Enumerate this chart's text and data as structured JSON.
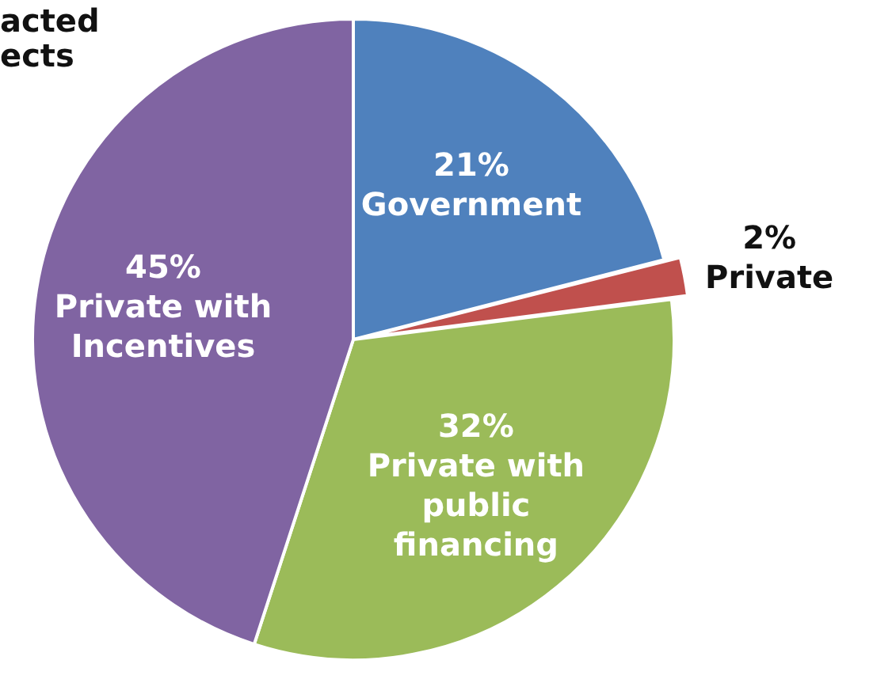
{
  "chart_data": {
    "type": "pie",
    "title": "acted\nects",
    "categories": [
      "Government",
      "Private",
      "Private with public financing",
      "Private with Incentives"
    ],
    "values": [
      21,
      2,
      32,
      45
    ],
    "value_labels": [
      "21%",
      "2%",
      "32%",
      "45%"
    ],
    "colors": [
      "#4f81bd",
      "#c0504d",
      "#9bbb59",
      "#8064a2"
    ],
    "legend": false
  }
}
